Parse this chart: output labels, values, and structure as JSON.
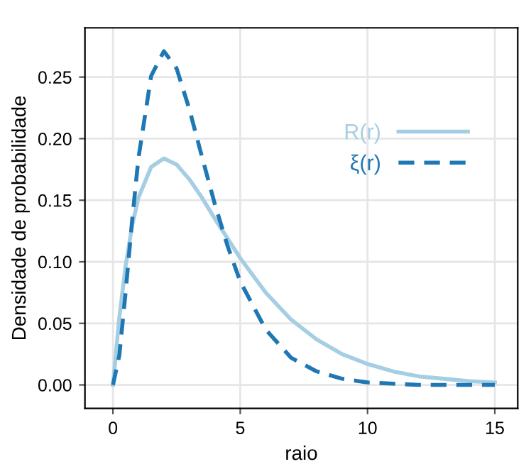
{
  "chart_data": {
    "type": "line",
    "xlabel": "raio",
    "ylabel": "Densidade de probabilidade",
    "x": [
      0,
      0.25,
      0.5,
      0.75,
      1,
      1.5,
      2,
      2.5,
      3,
      3.5,
      4,
      4.5,
      5,
      6,
      7,
      8,
      9,
      10,
      11,
      12,
      13,
      14,
      15
    ],
    "series": [
      {
        "name": "R(r)",
        "color": "#a6cee3",
        "line_style": "solid",
        "values": [
          0,
          0.055,
          0.097,
          0.129,
          0.152,
          0.177,
          0.184,
          0.179,
          0.167,
          0.152,
          0.135,
          0.119,
          0.103,
          0.075,
          0.053,
          0.037,
          0.025,
          0.017,
          0.011,
          0.007,
          0.005,
          0.003,
          0.002
        ]
      },
      {
        "name": "ξ(r)",
        "color": "#1f78b4",
        "line_style": "dashed",
        "values": [
          0,
          0.024,
          0.076,
          0.133,
          0.184,
          0.251,
          0.271,
          0.257,
          0.224,
          0.185,
          0.147,
          0.113,
          0.084,
          0.045,
          0.022,
          0.011,
          0.005,
          0.002,
          0.001,
          0.0,
          0.0,
          0.0,
          0.0
        ]
      }
    ],
    "xlim": [
      -1.1,
      15.9
    ],
    "ylim": [
      -0.019,
      0.29
    ],
    "xticks": [
      0,
      5,
      10,
      15
    ],
    "yticks": [
      {
        "value": 0,
        "label": "0.00"
      },
      {
        "value": 0.05,
        "label": "0.05"
      },
      {
        "value": 0.1,
        "label": "0.10"
      },
      {
        "value": 0.15,
        "label": "0.15"
      },
      {
        "value": 0.2,
        "label": "0.20"
      },
      {
        "value": 0.25,
        "label": "0.25"
      }
    ],
    "grid": true,
    "legend": "upper right",
    "marker": "none"
  }
}
